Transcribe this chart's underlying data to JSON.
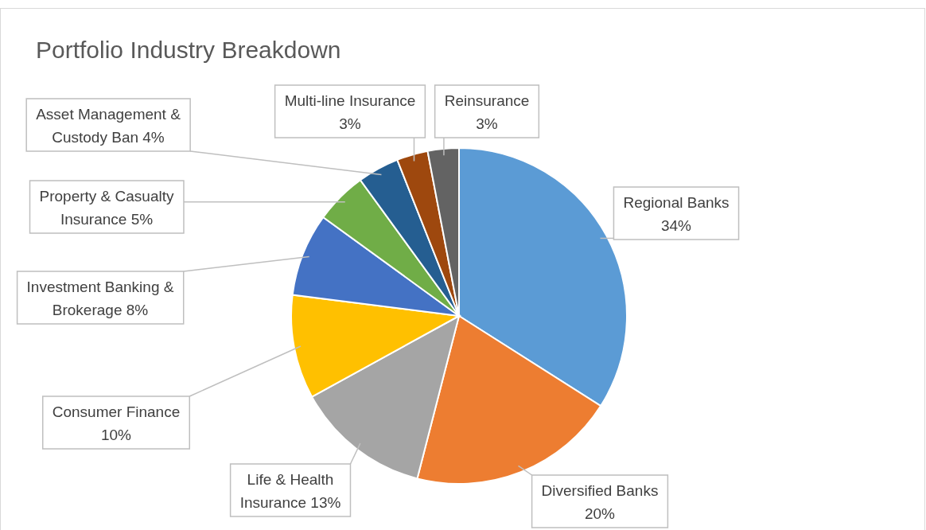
{
  "chart_data": {
    "type": "pie",
    "title": "Portfolio Industry Breakdown",
    "categories": [
      "Regional Banks",
      "Diversified Banks",
      "Life & Health Insurance",
      "Consumer Finance",
      "Investment Banking & Brokerage",
      "Property & Casualty Insurance",
      "Asset Management & Custody Ban",
      "Multi-line Insurance",
      "Reinsurance"
    ],
    "values": [
      34,
      20,
      13,
      10,
      8,
      5,
      4,
      3,
      3
    ],
    "value_labels": [
      "34%",
      "20%",
      "13%",
      "10%",
      "8%",
      "5%",
      "4%",
      "3%",
      "3%"
    ],
    "colors": [
      "#5b9bd5",
      "#ed7d31",
      "#a5a5a5",
      "#ffc000",
      "#4472c4",
      "#70ad47",
      "#255e91",
      "#9e480e",
      "#636363"
    ]
  }
}
